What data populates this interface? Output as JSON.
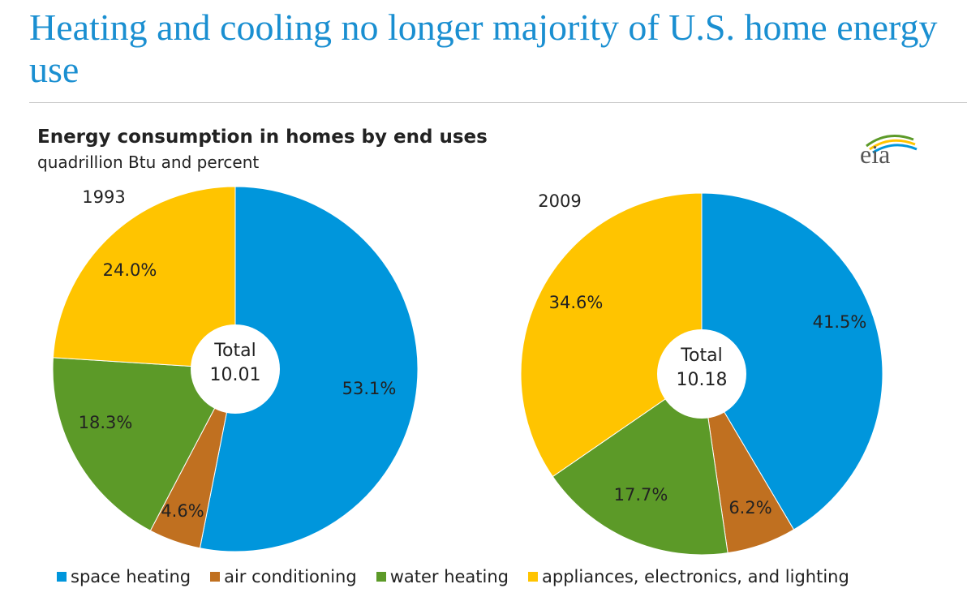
{
  "page": {
    "title": "Heating and cooling no longer majority of U.S. home energy use"
  },
  "logo": {
    "text": "eia"
  },
  "chart_data": {
    "type": "pie",
    "title": "Energy consumption in homes by end uses",
    "subtitle": "quadrillion Btu and percent",
    "legend_placement": "bottom",
    "categories": [
      "space heating",
      "air conditioning",
      "water heating",
      "appliances, electronics, and lighting"
    ],
    "colors": [
      "#0096dc",
      "#c07020",
      "#5c9a28",
      "#ffc400"
    ],
    "pies": [
      {
        "year": "1993",
        "total_label": "Total",
        "total": "10.01",
        "values": [
          53.1,
          4.6,
          18.3,
          24.0
        ],
        "labels": [
          "53.1%",
          "4.6%",
          "18.3%",
          "24.0%"
        ]
      },
      {
        "year": "2009",
        "total_label": "Total",
        "total": "10.18",
        "values": [
          41.5,
          6.2,
          17.7,
          34.6
        ],
        "labels": [
          "41.5%",
          "6.2%",
          "17.7%",
          "34.6%"
        ]
      }
    ]
  }
}
